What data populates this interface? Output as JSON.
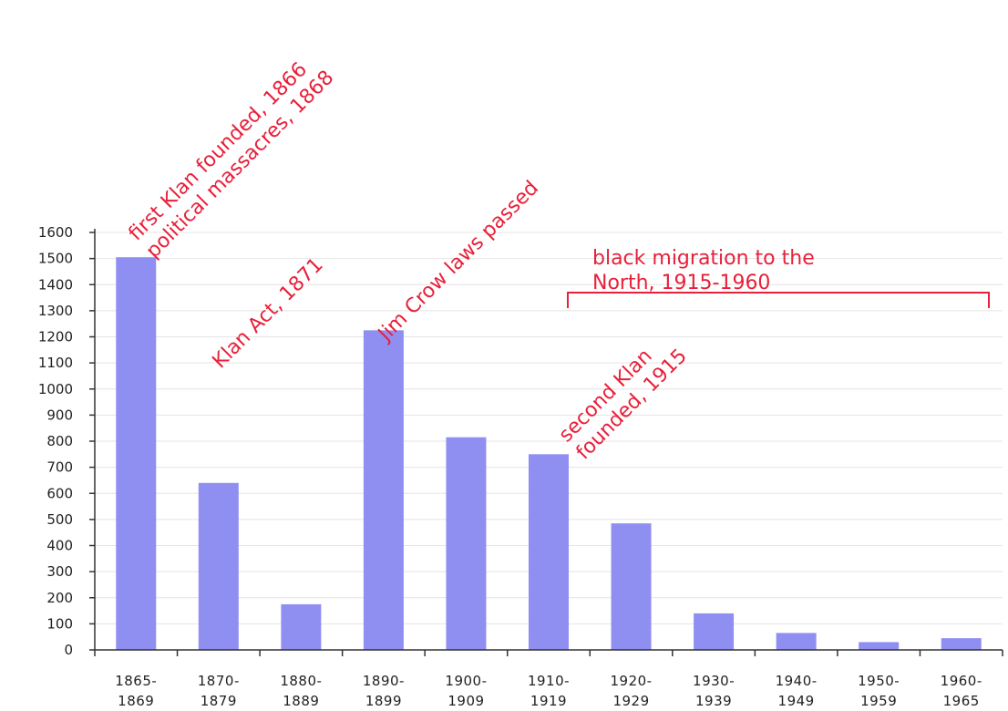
{
  "chart_data": {
    "type": "bar",
    "title": "",
    "xlabel": "",
    "ylabel": "",
    "ylim": [
      0,
      1600
    ],
    "yticks": [
      0,
      100,
      200,
      300,
      400,
      500,
      600,
      700,
      800,
      900,
      1000,
      1100,
      1200,
      1300,
      1400,
      1500,
      1600
    ],
    "grid": true,
    "categories": [
      [
        "1865-",
        "1869"
      ],
      [
        "1870-",
        "1879"
      ],
      [
        "1880-",
        "1889"
      ],
      [
        "1890-",
        "1899"
      ],
      [
        "1900-",
        "1909"
      ],
      [
        "1910-",
        "1919"
      ],
      [
        "1920-",
        "1929"
      ],
      [
        "1930-",
        "1939"
      ],
      [
        "1940-",
        "1949"
      ],
      [
        "1950-",
        "1959"
      ],
      [
        "1960-",
        "1965"
      ]
    ],
    "values": [
      1505,
      640,
      175,
      1225,
      815,
      750,
      485,
      140,
      65,
      30,
      45
    ],
    "colors": {
      "bar": "#8f8ff2",
      "annotation": "#e8203a",
      "grid": "#e4e4e4",
      "axis": "#333333"
    },
    "annotations": [
      {
        "lines": [
          "first Klan founded, 1866",
          "political massacres, 1868"
        ],
        "rotated": true
      },
      {
        "lines": [
          "Klan Act, 1871"
        ],
        "rotated": true
      },
      {
        "lines": [
          "Jim Crow laws passed"
        ],
        "rotated": true
      },
      {
        "lines": [
          "second Klan",
          "founded, 1915"
        ],
        "rotated": true
      },
      {
        "lines": [
          "black migration to the",
          "North, 1915-1960"
        ],
        "rotated": false,
        "bracket": true
      }
    ]
  }
}
